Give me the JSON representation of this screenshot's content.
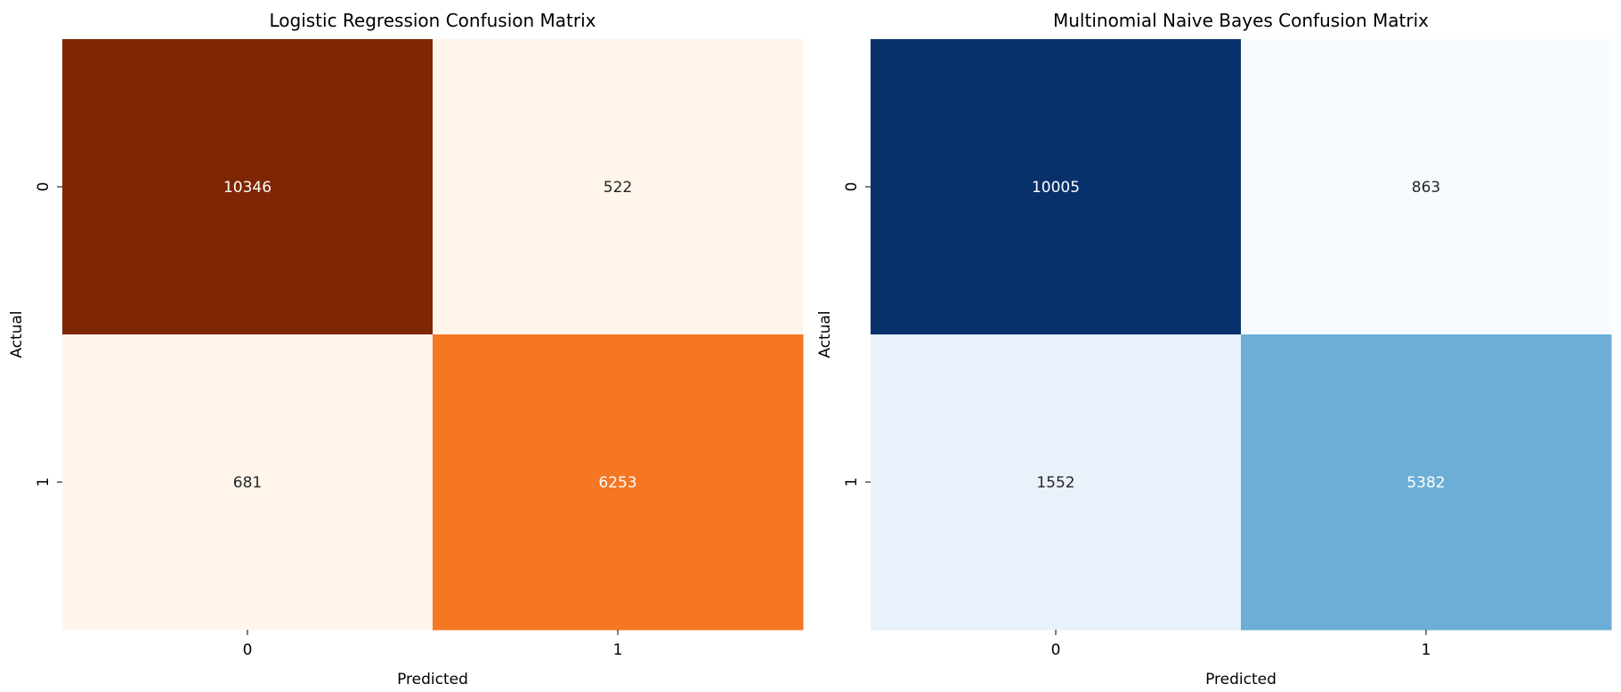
{
  "chart_data": [
    {
      "type": "heatmap",
      "title": "Logistic Regression Confusion Matrix",
      "xlabel": "Predicted",
      "ylabel": "Actual",
      "x_categories": [
        "0",
        "1"
      ],
      "y_categories": [
        "0",
        "1"
      ],
      "values": [
        [
          10346,
          522
        ],
        [
          681,
          6253
        ]
      ],
      "colormap": "Oranges",
      "colors": [
        [
          "#7f2704",
          "#fff5eb"
        ],
        [
          "#fff5eb",
          "#f57623"
        ]
      ],
      "text_colors": [
        [
          "#ffffff",
          "#262626"
        ],
        [
          "#262626",
          "#ffffff"
        ]
      ],
      "colorbar": false
    },
    {
      "type": "heatmap",
      "title": "Multinomial Naive Bayes Confusion Matrix",
      "xlabel": "Predicted",
      "ylabel": "Actual",
      "x_categories": [
        "0",
        "1"
      ],
      "y_categories": [
        "0",
        "1"
      ],
      "values": [
        [
          10005,
          863
        ],
        [
          1552,
          5382
        ]
      ],
      "colormap": "Blues",
      "colors": [
        [
          "#08306b",
          "#f7fbff"
        ],
        [
          "#e9f1fa",
          "#6caed6"
        ]
      ],
      "text_colors": [
        [
          "#ffffff",
          "#262626"
        ],
        [
          "#262626",
          "#ffffff"
        ]
      ],
      "colorbar": false
    }
  ]
}
